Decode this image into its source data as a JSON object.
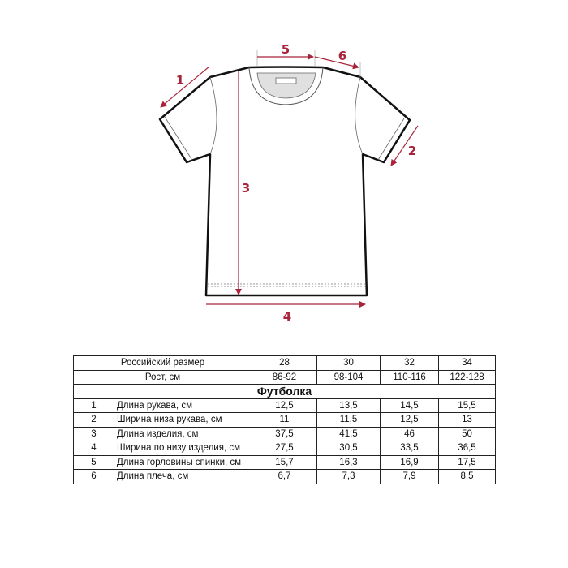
{
  "diagram": {
    "labels": [
      "1",
      "2",
      "3",
      "4",
      "5",
      "6"
    ],
    "accent_color": "#a8243a"
  },
  "table": {
    "size_label": "Российский размер",
    "height_label": "Рост, см",
    "sizes": [
      "28",
      "30",
      "32",
      "34"
    ],
    "heights": [
      "86-92",
      "98-104",
      "110-116",
      "122-128"
    ],
    "section_title": "Футболка",
    "rows": [
      {
        "num": "1",
        "name": "Длина рукава, см",
        "values": [
          "12,5",
          "13,5",
          "14,5",
          "15,5"
        ]
      },
      {
        "num": "2",
        "name": "Ширина низа рукава, см",
        "values": [
          "11",
          "11,5",
          "12,5",
          "13"
        ]
      },
      {
        "num": "3",
        "name": "Длина изделия, см",
        "values": [
          "37,5",
          "41,5",
          "46",
          "50"
        ]
      },
      {
        "num": "4",
        "name": "Ширина по низу изделия, см",
        "values": [
          "27,5",
          "30,5",
          "33,5",
          "36,5"
        ]
      },
      {
        "num": "5",
        "name": "Длина горловины спинки, см",
        "values": [
          "15,7",
          "16,3",
          "16,9",
          "17,5"
        ]
      },
      {
        "num": "6",
        "name": "Длина плеча, см",
        "values": [
          "6,7",
          "7,3",
          "7,9",
          "8,5"
        ]
      }
    ]
  }
}
